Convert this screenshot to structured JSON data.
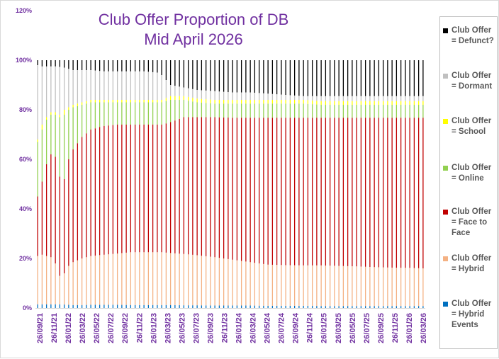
{
  "chart_data": {
    "type": "bar",
    "stacked": "percent",
    "title_lines": [
      "Club Offer Proportion of DB",
      "Mid April 2026"
    ],
    "y_ticks": [
      "0%",
      "20%",
      "40%",
      "60%",
      "80%",
      "100%",
      "120%"
    ],
    "ylim": [
      0,
      120
    ],
    "x_ticks": [
      "26/09/21",
      "26/11/21",
      "26/01/22",
      "26/03/22",
      "26/05/22",
      "26/07/22",
      "26/09/22",
      "26/11/22",
      "26/01/23",
      "26/03/23",
      "26/05/23",
      "26/07/23",
      "26/09/23",
      "26/11/23",
      "26/01/24",
      "26/03/24",
      "26/05/24",
      "26/07/24",
      "26/09/24",
      "26/11/24",
      "26/01/25",
      "26/03/25",
      "26/05/25",
      "26/07/25",
      "26/09/25",
      "26/11/25",
      "26/01/26",
      "26/03/26"
    ],
    "legend_position": "right",
    "series_order_bottom_to_top": [
      "hybrid_events",
      "hybrid",
      "face_to_face",
      "online",
      "school",
      "dormant",
      "defunct"
    ],
    "series": [
      {
        "key": "defunct",
        "name_lines": [
          "Club Offer",
          "= Defunct?"
        ],
        "color": "#000000"
      },
      {
        "key": "dormant",
        "name_lines": [
          "Club Offer",
          "= Dormant"
        ],
        "color": "#c0c0c0"
      },
      {
        "key": "school",
        "name_lines": [
          "Club Offer",
          "= School"
        ],
        "color": "#ffff00"
      },
      {
        "key": "online",
        "name_lines": [
          "Club Offer",
          "= Online"
        ],
        "color": "#92d050"
      },
      {
        "key": "face_to_face",
        "name_lines": [
          "Club Offer",
          "= Face to",
          "Face"
        ],
        "color": "#c00000"
      },
      {
        "key": "hybrid",
        "name_lines": [
          "Club Offer",
          "= Hybrid"
        ],
        "color": "#f4b183"
      },
      {
        "key": "hybrid_events",
        "name_lines": [
          "Club Offer",
          "= Hybrid",
          "Events"
        ],
        "color": "#0070c0"
      }
    ],
    "cumulative_top_keyframes": {
      "x_index": [
        0,
        1,
        2,
        3,
        4,
        5,
        6,
        7,
        8,
        10,
        12,
        15,
        18,
        21,
        24,
        27,
        28,
        30,
        33,
        36,
        40,
        44,
        48,
        52,
        56,
        60,
        64,
        68,
        72,
        76,
        80,
        84,
        87
      ],
      "hybrid_events": [
        1.5,
        1.5,
        1.5,
        1.5,
        1.5,
        1.5,
        1.4,
        1.3,
        1.2,
        1.2,
        1.3,
        1.3,
        1.3,
        1.2,
        1.2,
        1.2,
        1.2,
        1.2,
        1.1,
        1.1,
        1.0,
        1.0,
        1.0,
        0.9,
        0.9,
        0.9,
        0.8,
        0.8,
        0.8,
        0.8,
        0.8,
        0.8,
        0.8
      ],
      "hybrid": [
        21,
        21.5,
        21,
        20.5,
        18,
        13,
        14,
        17,
        18.5,
        20,
        21,
        21.5,
        22,
        22.5,
        22.5,
        22.5,
        22.5,
        22.2,
        21.8,
        21.3,
        20.5,
        19.5,
        18.5,
        17.5,
        17.3,
        17.2,
        17.2,
        17,
        16.8,
        16.5,
        16.3,
        16.2,
        16
      ],
      "face_to_face": [
        45,
        51,
        58,
        62,
        61,
        53,
        52,
        60,
        64,
        69,
        72,
        73.5,
        74,
        74,
        74,
        74,
        74,
        75,
        77,
        77,
        77,
        76.8,
        76.8,
        76.8,
        76.8,
        76.8,
        76.8,
        76.8,
        76.8,
        76.8,
        76.8,
        76.8,
        76.8
      ],
      "online": [
        67,
        72,
        76,
        78,
        78,
        77,
        78,
        80,
        81,
        82,
        83,
        83,
        83,
        83,
        83,
        83,
        83,
        84,
        84,
        83,
        82.5,
        82.5,
        82.5,
        82.5,
        82.5,
        82.5,
        82,
        82,
        82,
        82,
        82,
        82,
        82
      ],
      "school": [
        68,
        74,
        77,
        79,
        79,
        78,
        80,
        81,
        82,
        83,
        84,
        84,
        84,
        84,
        84,
        84,
        84,
        85.5,
        85.5,
        84.5,
        84,
        84,
        84,
        84,
        84,
        84,
        83.5,
        83.5,
        83.5,
        83.5,
        83.5,
        83.5,
        83.5
      ],
      "dormant": [
        98,
        97.5,
        97.5,
        97.5,
        97.5,
        97.3,
        97,
        96.5,
        96,
        96,
        96,
        95.5,
        95.5,
        95.5,
        95.5,
        95,
        94,
        90,
        89,
        88,
        87.5,
        87,
        87,
        86.5,
        86,
        85.5,
        85.5,
        85.5,
        85.5,
        85.5,
        85.5,
        85.5,
        85.5
      ],
      "defunct": [
        100,
        100,
        100,
        100,
        100,
        100,
        100,
        100,
        100,
        100,
        100,
        100,
        100,
        100,
        100,
        100,
        100,
        100,
        100,
        100,
        100,
        100,
        100,
        100,
        100,
        100,
        100,
        100,
        100,
        100,
        100,
        100,
        100
      ]
    },
    "bar_count": 88,
    "grid": false
  }
}
